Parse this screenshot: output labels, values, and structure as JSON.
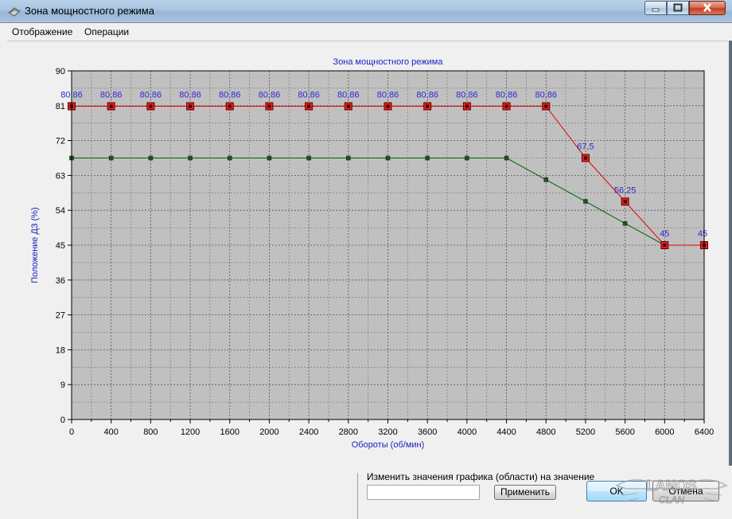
{
  "window": {
    "title": "Зона мощностного режима"
  },
  "menu": {
    "items": [
      "Отображение",
      "Операции"
    ]
  },
  "chart_data": {
    "type": "line",
    "title": "Зона мощностного режима",
    "xlabel": "Обороты (об/мин)",
    "ylabel": "Положение ДЗ (%)",
    "x": [
      0,
      400,
      800,
      1200,
      1600,
      2000,
      2400,
      2800,
      3200,
      3600,
      4000,
      4400,
      4800,
      5200,
      5600,
      6000,
      6400
    ],
    "x_ticks": [
      "0",
      "400",
      "800",
      "1200",
      "1600",
      "2000",
      "2400",
      "2800",
      "3200",
      "3600",
      "4000",
      "4400",
      "4800",
      "5200",
      "5600",
      "6000",
      "6400"
    ],
    "y_ticks": [
      "0",
      "9",
      "18",
      "27",
      "36",
      "45",
      "54",
      "63",
      "72",
      "81",
      "90"
    ],
    "xlim": [
      0,
      6400
    ],
    "ylim": [
      0,
      90
    ],
    "grid": true,
    "series": [
      {
        "color": "#e00000",
        "values": [
          80.86,
          80.86,
          80.86,
          80.86,
          80.86,
          80.86,
          80.86,
          80.86,
          80.86,
          80.86,
          80.86,
          80.86,
          80.86,
          67.5,
          56.25,
          45,
          45
        ],
        "labels": [
          "80,86",
          "80,86",
          "80,86",
          "80,86",
          "80,86",
          "80,86",
          "80,86",
          "80,86",
          "80,86",
          "80,86",
          "80,86",
          "80,86",
          "80,86",
          "67,5",
          "56,25",
          "45",
          "45"
        ]
      },
      {
        "color": "#006400",
        "values": [
          67.5,
          67.5,
          67.5,
          67.5,
          67.5,
          67.5,
          67.5,
          67.5,
          67.5,
          67.5,
          67.5,
          67.5,
          61.9,
          56.3,
          50.6,
          45,
          45
        ]
      }
    ]
  },
  "controls": {
    "change_label": "Изменить значения графика (области) на значение",
    "value_input": "",
    "apply_button": "Применить",
    "ok_button": "OK",
    "cancel_button": "Отмена"
  },
  "colors": {
    "plot_bg": "#c0c0c0",
    "title_color": "#1c22c4",
    "label_color": "#2020c0"
  },
  "logo": {
    "text": "LANOS",
    "sub": "CLAN"
  }
}
